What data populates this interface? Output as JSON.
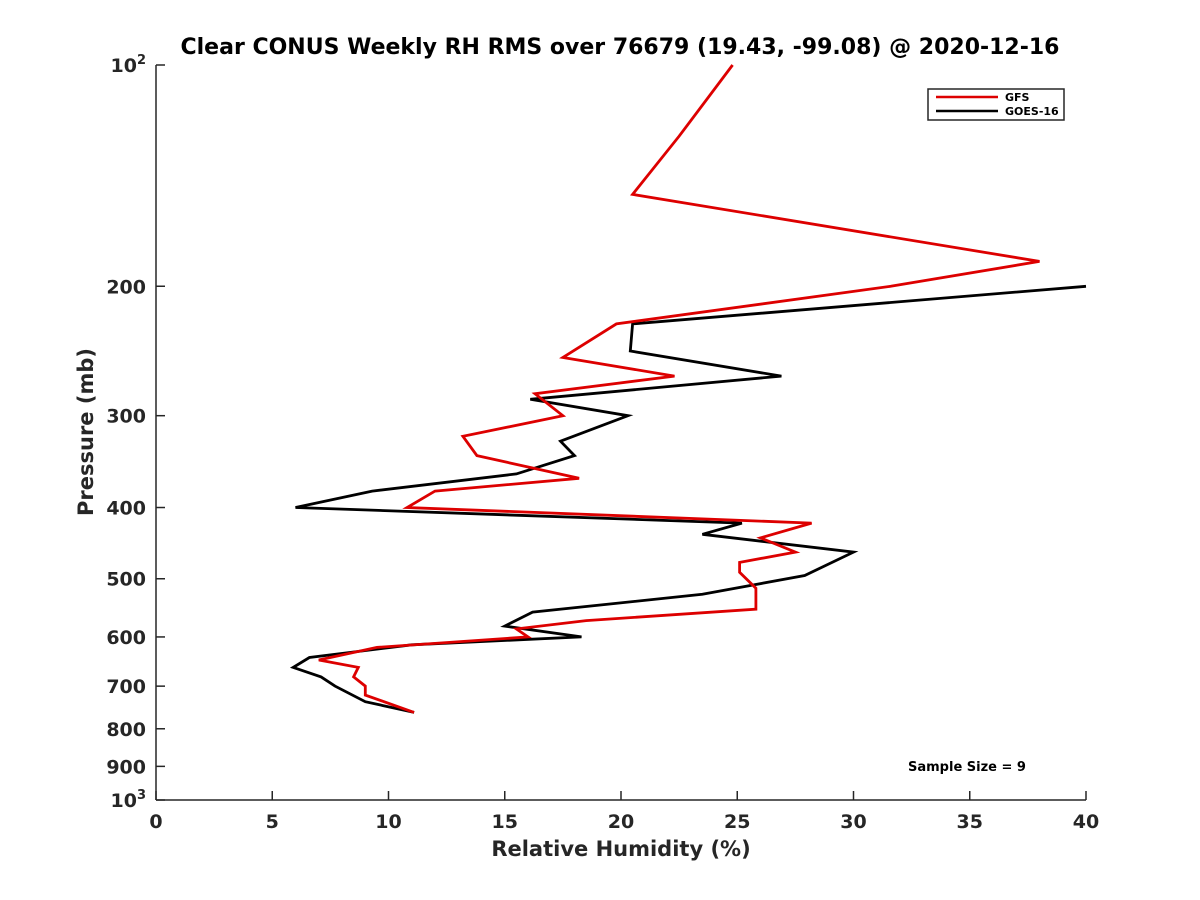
{
  "chart_data": {
    "type": "line",
    "title": "Clear CONUS Weekly RH RMS over 76679 (19.43, -99.08) @ 2020-12-16",
    "xlabel": "Relative Humidity (%)",
    "ylabel": "Pressure (mb)",
    "xlim": [
      0,
      40
    ],
    "ylim": [
      100,
      1000
    ],
    "yscale": "log",
    "y_direction": "reversed",
    "grid": false,
    "legend_position": "top-right",
    "x_ticks": [
      "0",
      "5",
      "10",
      "15",
      "20",
      "25",
      "30",
      "35",
      "40"
    ],
    "y_ticks": [
      {
        "value": 100,
        "base": "10",
        "exp": "2"
      },
      {
        "value": 200,
        "label": "200"
      },
      {
        "value": 300,
        "label": "300"
      },
      {
        "value": 400,
        "label": "400"
      },
      {
        "value": 500,
        "label": "500"
      },
      {
        "value": 600,
        "label": "600"
      },
      {
        "value": 700,
        "label": "700"
      },
      {
        "value": 800,
        "label": "800"
      },
      {
        "value": 900,
        "label": "900"
      },
      {
        "value": 1000,
        "base": "10",
        "exp": "3"
      }
    ],
    "series": [
      {
        "name": "GFS",
        "color": "#dd0000",
        "points": [
          [
            24.8,
            100
          ],
          [
            22.5,
            125
          ],
          [
            20.5,
            150
          ],
          [
            38.0,
            185
          ],
          [
            31.6,
            200
          ],
          [
            19.8,
            225
          ],
          [
            17.5,
            250
          ],
          [
            22.3,
            265
          ],
          [
            16.3,
            280
          ],
          [
            17.5,
            300
          ],
          [
            13.2,
            320
          ],
          [
            13.8,
            340
          ],
          [
            18.2,
            365
          ],
          [
            12.0,
            380
          ],
          [
            10.8,
            400
          ],
          [
            28.2,
            420
          ],
          [
            26.0,
            440
          ],
          [
            27.5,
            460
          ],
          [
            25.1,
            475
          ],
          [
            25.1,
            490
          ],
          [
            25.8,
            515
          ],
          [
            25.8,
            550
          ],
          [
            18.5,
            570
          ],
          [
            15.5,
            585
          ],
          [
            16.0,
            600
          ],
          [
            9.5,
            620
          ],
          [
            7.0,
            645
          ],
          [
            8.7,
            660
          ],
          [
            8.5,
            680
          ],
          [
            9.0,
            700
          ],
          [
            9.0,
            720
          ],
          [
            11.1,
            760
          ]
        ]
      },
      {
        "name": "GOES-16",
        "color": "#000000",
        "points": [
          [
            40.0,
            200
          ],
          [
            20.5,
            225
          ],
          [
            20.4,
            245
          ],
          [
            26.9,
            265
          ],
          [
            16.1,
            285
          ],
          [
            20.3,
            300
          ],
          [
            17.4,
            325
          ],
          [
            18.0,
            340
          ],
          [
            15.5,
            360
          ],
          [
            9.3,
            380
          ],
          [
            6.0,
            400
          ],
          [
            25.2,
            420
          ],
          [
            23.5,
            435
          ],
          [
            30.0,
            460
          ],
          [
            27.9,
            495
          ],
          [
            23.5,
            525
          ],
          [
            16.2,
            555
          ],
          [
            15.0,
            580
          ],
          [
            18.3,
            600
          ],
          [
            11.0,
            615
          ],
          [
            6.6,
            640
          ],
          [
            5.9,
            660
          ],
          [
            7.1,
            680
          ],
          [
            7.7,
            700
          ],
          [
            9.0,
            735
          ],
          [
            11.1,
            760
          ]
        ]
      }
    ],
    "annotations": [
      "Sample Size = 9"
    ]
  }
}
